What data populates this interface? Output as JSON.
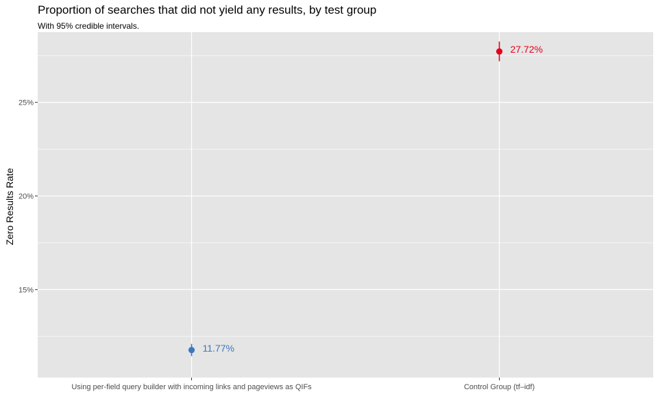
{
  "chart_data": {
    "type": "scatter",
    "title": "Proportion of searches that did not yield any results, by test group",
    "subtitle": "With 95% credible intervals.",
    "xlabel": "",
    "ylabel": "Zero Results Rate",
    "categories": [
      "Using per-field query builder with incoming links and pageviews as QIFs",
      "Control Group (tf–idf)"
    ],
    "points": [
      {
        "category": "Using per-field query builder with incoming links and pageviews as QIFs",
        "value": 11.77,
        "lower": 11.45,
        "upper": 12.1,
        "label": "11.77%",
        "color": "#3C78BD"
      },
      {
        "category": "Control Group (tf–idf)",
        "value": 27.72,
        "lower": 27.2,
        "upper": 28.25,
        "label": "27.72%",
        "color": "#E3001B"
      }
    ],
    "ylim": [
      10.3,
      28.75
    ],
    "yticks": [
      15,
      20,
      25
    ],
    "ytick_labels": [
      "15%",
      "20%",
      "25%"
    ],
    "y_minor_ticks": [
      12.5,
      17.5,
      22.5,
      27.5
    ],
    "grid": true,
    "panel_background": "#E5E5E5",
    "grid_color": "#FFFFFF"
  }
}
